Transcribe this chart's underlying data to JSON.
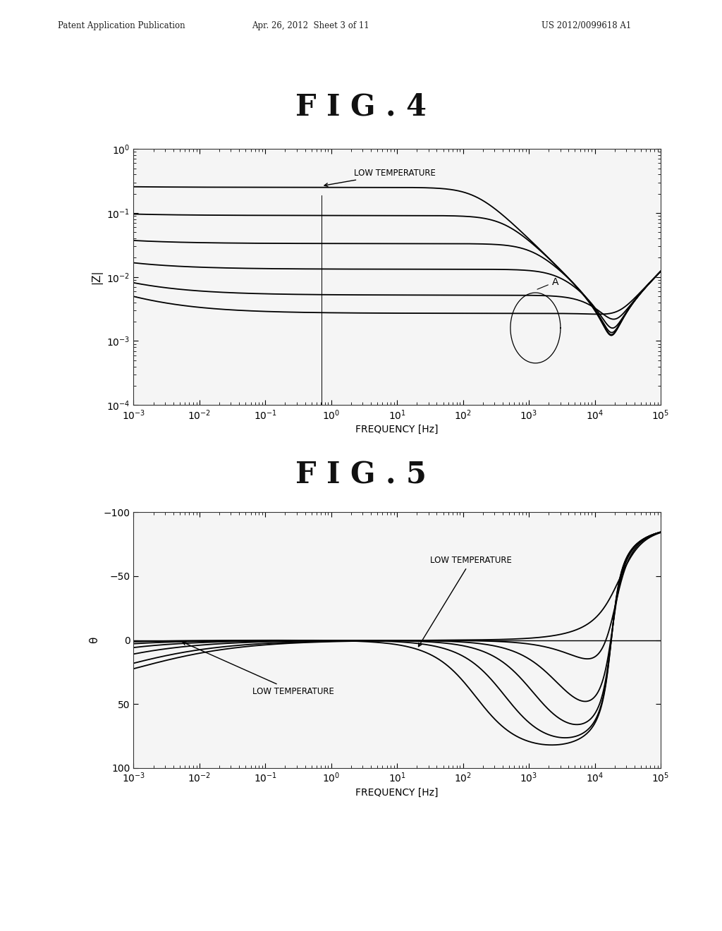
{
  "header_left": "Patent Application Publication",
  "header_center": "Apr. 26, 2012  Sheet 3 of 11",
  "header_right": "US 2012/0099618 A1",
  "fig4_title": "F I G . 4",
  "fig5_title": "F I G . 5",
  "fig4_ylabel": "|Z|",
  "fig4_xlabel": "FREQUENCY [Hz]",
  "fig5_ylabel": "θ",
  "fig5_xlabel": "FREQUENCY [Hz]",
  "fig4_annotation": "LOW TEMPERATURE",
  "fig5_annotation_top": "LOW TEMPERATURE",
  "fig5_annotation_bot": "LOW TEMPERATURE",
  "fig4_A_label": "A",
  "n_curves": 6,
  "background_color": "#ffffff",
  "curve_color": "#000000"
}
